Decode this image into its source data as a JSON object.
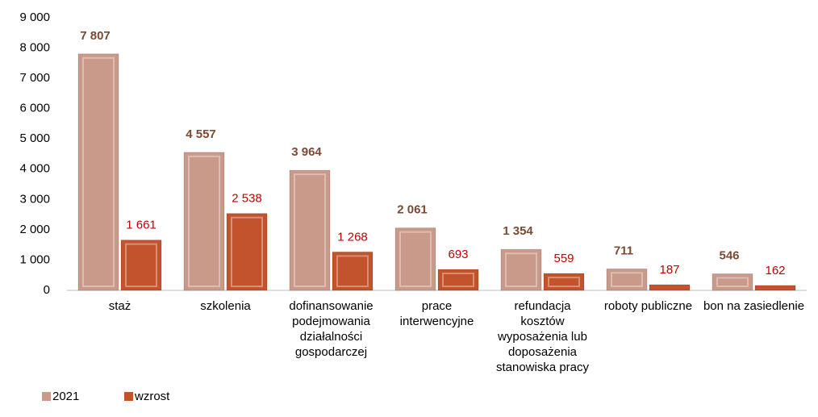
{
  "chart_data": {
    "type": "bar",
    "categories": [
      "staż",
      "szkolenia",
      "dofinansowanie podejmowania działalności gospodarczej",
      "prace interwencyjne",
      "refundacja kosztów wyposażenia lub doposażenia stanowiska pracy",
      "roboty publiczne",
      "bon na zasiedlenie"
    ],
    "series": [
      {
        "name": "2021",
        "color": "#c99a8a",
        "label_color": "#7a4a33",
        "values": [
          7807,
          4557,
          3964,
          2061,
          1354,
          711,
          546
        ],
        "value_labels": [
          "7 807",
          "4 557",
          "3 964",
          "2 061",
          "1 354",
          "711",
          "546"
        ]
      },
      {
        "name": "wzrost",
        "color": "#c2532c",
        "label_color": "#c00000",
        "values": [
          1661,
          2538,
          1268,
          693,
          559,
          187,
          162
        ],
        "value_labels": [
          "1 661",
          "2 538",
          "1 268",
          "693",
          "559",
          "187",
          "162"
        ]
      }
    ],
    "ylim": [
      0,
      9000
    ],
    "yticks": [
      0,
      {
        "value": 1000,
        "label": "1 000"
      },
      {
        "value": 2000,
        "label": "2 000"
      },
      {
        "value": 3000,
        "label": "3 000"
      },
      {
        "value": 4000,
        "label": "4 000"
      },
      {
        "value": 5000,
        "label": "5 000"
      },
      {
        "value": 6000,
        "label": "6 000"
      },
      {
        "value": 7000,
        "label": "7 000"
      },
      {
        "value": 8000,
        "label": "8 000"
      },
      {
        "value": 9000,
        "label": "9 000"
      }
    ],
    "grid": false,
    "legend": "bottom-left"
  }
}
